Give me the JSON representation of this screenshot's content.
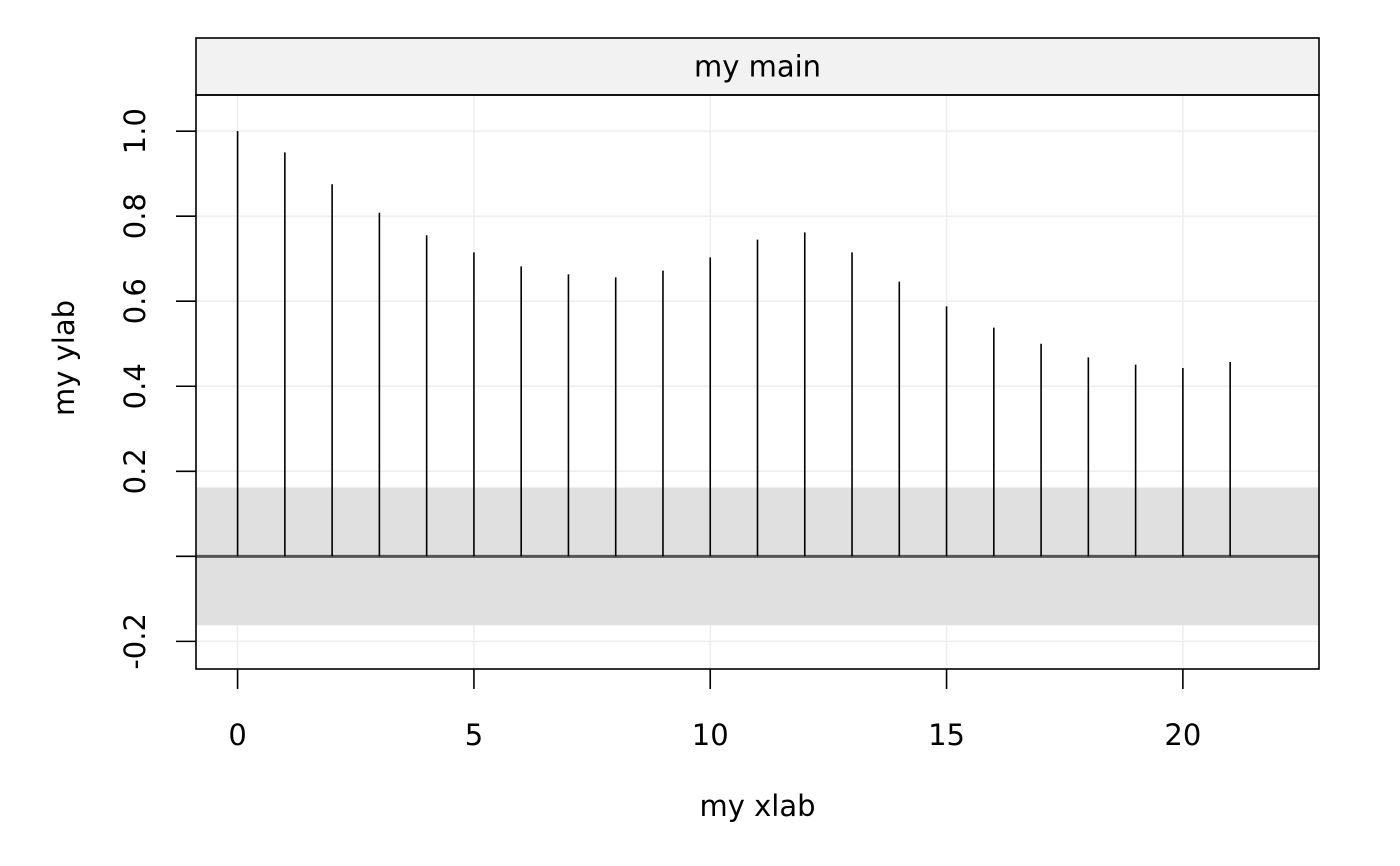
{
  "chart_data": {
    "type": "bar",
    "title": "my main",
    "xlabel": "my xlab",
    "ylabel": "my ylab",
    "x": [
      0,
      1,
      2,
      3,
      4,
      5,
      6,
      7,
      8,
      9,
      10,
      11,
      12,
      13,
      14,
      15,
      16,
      17,
      18,
      19,
      20,
      21
    ],
    "values": [
      1.0,
      0.95,
      0.875,
      0.808,
      0.755,
      0.715,
      0.682,
      0.663,
      0.656,
      0.672,
      0.703,
      0.745,
      0.762,
      0.715,
      0.646,
      0.588,
      0.538,
      0.5,
      0.468,
      0.451,
      0.443,
      0.457
    ],
    "confidence_band": [
      -0.162,
      0.162
    ],
    "xlim": [
      -0.88,
      22.88
    ],
    "ylim": [
      -0.265,
      1.085
    ],
    "xticks": [
      0,
      5,
      10,
      15,
      20
    ],
    "xtick_labels": [
      "0",
      "5",
      "10",
      "15",
      "20"
    ],
    "yticks": [
      -0.2,
      0.0,
      0.2,
      0.4,
      0.6,
      0.8,
      1.0
    ],
    "ytick_labels": [
      "-0.2",
      "",
      "0.2",
      "0.4",
      "0.6",
      "0.8",
      "1.0"
    ],
    "grid": true,
    "colors": {
      "stem": "#000000",
      "band": "#e0e0e0",
      "zero_line": "#555555",
      "grid": "#ededed",
      "strip": "#f2f2f2",
      "frame": "#000000"
    }
  }
}
